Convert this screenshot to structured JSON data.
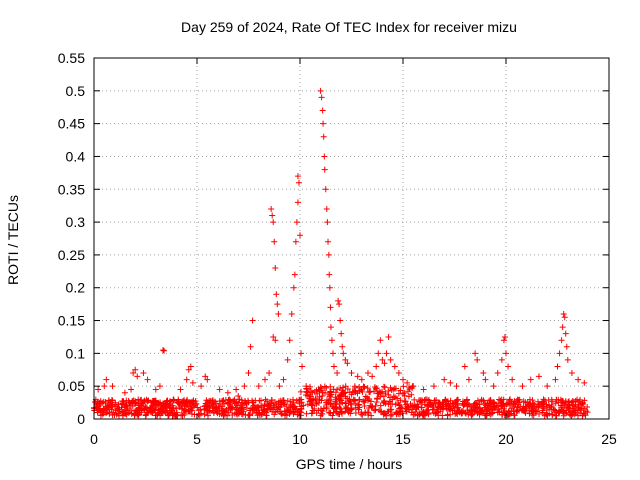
{
  "chart_data": {
    "type": "scatter",
    "title": "Day 259 of 2024, Rate Of TEC Index for receiver mizu",
    "xlabel": "GPS time / hours",
    "ylabel": "ROTI / TECUs",
    "xlim": [
      0,
      25
    ],
    "ylim": [
      0,
      0.55
    ],
    "xticks": [
      0,
      5,
      10,
      15,
      20,
      25
    ],
    "xtick_labels": [
      "0",
      "5",
      "10",
      "15",
      "20",
      "25"
    ],
    "yticks": [
      0,
      0.05,
      0.1,
      0.15,
      0.2,
      0.25,
      0.3,
      0.35,
      0.4,
      0.45,
      0.5,
      0.55
    ],
    "ytick_labels": [
      "0",
      "0.05",
      "0.1",
      "0.15",
      "0.2",
      "0.25",
      "0.3",
      "0.35",
      "0.4",
      "0.45",
      "0.5",
      "0.55"
    ],
    "grid": true,
    "marker": "+",
    "color": "#ff0000",
    "baseline_band": {
      "x_start": 0,
      "x_end": 24,
      "y_min": 0.005,
      "y_max": 0.03
    },
    "series": [
      {
        "name": "ROTI",
        "points": [
          [
            0.2,
            0.045
          ],
          [
            0.5,
            0.05
          ],
          [
            0.6,
            0.06
          ],
          [
            0.9,
            0.05
          ],
          [
            1.5,
            0.04
          ],
          [
            1.8,
            0.045
          ],
          [
            1.9,
            0.07
          ],
          [
            2.0,
            0.075
          ],
          [
            2.1,
            0.065
          ],
          [
            2.4,
            0.07
          ],
          [
            2.6,
            0.06
          ],
          [
            3.0,
            0.045
          ],
          [
            3.2,
            0.05
          ],
          [
            3.35,
            0.105
          ],
          [
            3.4,
            0.104
          ],
          [
            4.2,
            0.045
          ],
          [
            4.5,
            0.06
          ],
          [
            4.6,
            0.075
          ],
          [
            4.7,
            0.08
          ],
          [
            4.8,
            0.055
          ],
          [
            5.2,
            0.05
          ],
          [
            5.4,
            0.065
          ],
          [
            5.5,
            0.06
          ],
          [
            6.1,
            0.045
          ],
          [
            6.5,
            0.04
          ],
          [
            6.9,
            0.045
          ],
          [
            7.0,
            0.035
          ],
          [
            7.3,
            0.05
          ],
          [
            7.5,
            0.07
          ],
          [
            7.6,
            0.11
          ],
          [
            7.7,
            0.15
          ],
          [
            8.0,
            0.05
          ],
          [
            8.3,
            0.06
          ],
          [
            8.5,
            0.07
          ],
          [
            8.6,
            0.32
          ],
          [
            8.65,
            0.31
          ],
          [
            8.7,
            0.3
          ],
          [
            8.75,
            0.27
          ],
          [
            8.8,
            0.23
          ],
          [
            8.85,
            0.19
          ],
          [
            8.9,
            0.175
          ],
          [
            8.95,
            0.16
          ],
          [
            8.7,
            0.125
          ],
          [
            8.8,
            0.12
          ],
          [
            9.0,
            0.05
          ],
          [
            9.2,
            0.06
          ],
          [
            9.4,
            0.09
          ],
          [
            9.5,
            0.12
          ],
          [
            9.6,
            0.16
          ],
          [
            9.7,
            0.2
          ],
          [
            9.75,
            0.22
          ],
          [
            9.8,
            0.27
          ],
          [
            9.85,
            0.3
          ],
          [
            9.9,
            0.33
          ],
          [
            9.9,
            0.37
          ],
          [
            9.95,
            0.36
          ],
          [
            10.0,
            0.28
          ],
          [
            10.05,
            0.1
          ],
          [
            10.1,
            0.08
          ],
          [
            10.3,
            0.05
          ],
          [
            10.6,
            0.04
          ],
          [
            10.9,
            0.045
          ],
          [
            11.0,
            0.5
          ],
          [
            11.05,
            0.49
          ],
          [
            11.1,
            0.47
          ],
          [
            11.12,
            0.45
          ],
          [
            11.15,
            0.43
          ],
          [
            11.18,
            0.4
          ],
          [
            11.2,
            0.38
          ],
          [
            11.25,
            0.35
          ],
          [
            11.3,
            0.32
          ],
          [
            11.33,
            0.3
          ],
          [
            11.36,
            0.27
          ],
          [
            11.4,
            0.25
          ],
          [
            11.42,
            0.22
          ],
          [
            11.45,
            0.2
          ],
          [
            11.48,
            0.17
          ],
          [
            11.5,
            0.14
          ],
          [
            11.55,
            0.12
          ],
          [
            11.6,
            0.1
          ],
          [
            11.65,
            0.08
          ],
          [
            11.8,
            0.07
          ],
          [
            11.85,
            0.18
          ],
          [
            11.9,
            0.175
          ],
          [
            11.95,
            0.15
          ],
          [
            12.0,
            0.13
          ],
          [
            12.05,
            0.11
          ],
          [
            12.1,
            0.1
          ],
          [
            12.2,
            0.09
          ],
          [
            12.3,
            0.085
          ],
          [
            12.5,
            0.07
          ],
          [
            12.8,
            0.065
          ],
          [
            13.0,
            0.06
          ],
          [
            13.3,
            0.07
          ],
          [
            13.5,
            0.065
          ],
          [
            13.7,
            0.08
          ],
          [
            13.8,
            0.1
          ],
          [
            13.9,
            0.12
          ],
          [
            14.0,
            0.09
          ],
          [
            14.1,
            0.085
          ],
          [
            14.2,
            0.1
          ],
          [
            14.3,
            0.125
          ],
          [
            14.4,
            0.09
          ],
          [
            14.6,
            0.08
          ],
          [
            14.8,
            0.07
          ],
          [
            15.0,
            0.06
          ],
          [
            15.2,
            0.055
          ],
          [
            15.5,
            0.05
          ],
          [
            16.0,
            0.045
          ],
          [
            16.5,
            0.05
          ],
          [
            17.0,
            0.06
          ],
          [
            17.3,
            0.055
          ],
          [
            17.6,
            0.05
          ],
          [
            18.0,
            0.08
          ],
          [
            18.2,
            0.06
          ],
          [
            18.5,
            0.1
          ],
          [
            18.6,
            0.09
          ],
          [
            18.9,
            0.07
          ],
          [
            19.0,
            0.06
          ],
          [
            19.4,
            0.05
          ],
          [
            19.6,
            0.07
          ],
          [
            19.8,
            0.09
          ],
          [
            19.9,
            0.12
          ],
          [
            19.95,
            0.125
          ],
          [
            20.0,
            0.1
          ],
          [
            20.1,
            0.08
          ],
          [
            20.3,
            0.06
          ],
          [
            20.8,
            0.05
          ],
          [
            21.2,
            0.06
          ],
          [
            21.6,
            0.065
          ],
          [
            22.0,
            0.05
          ],
          [
            22.4,
            0.06
          ],
          [
            22.5,
            0.08
          ],
          [
            22.6,
            0.1
          ],
          [
            22.7,
            0.12
          ],
          [
            22.75,
            0.14
          ],
          [
            22.8,
            0.16
          ],
          [
            22.85,
            0.155
          ],
          [
            22.9,
            0.13
          ],
          [
            22.95,
            0.11
          ],
          [
            23.0,
            0.09
          ],
          [
            23.2,
            0.07
          ],
          [
            23.5,
            0.06
          ],
          [
            23.8,
            0.055
          ]
        ]
      }
    ]
  }
}
